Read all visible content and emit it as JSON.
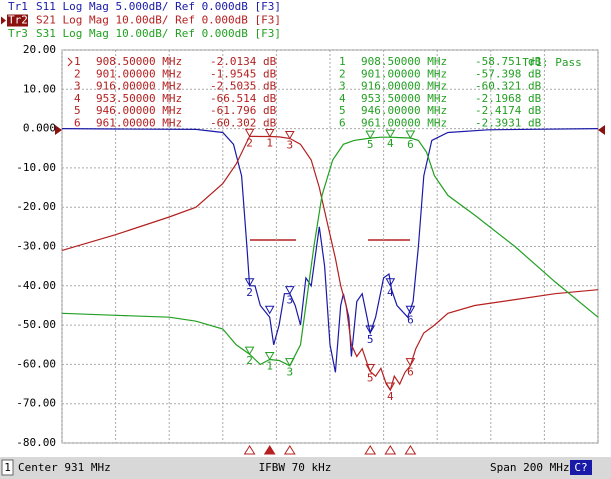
{
  "chart_data": {
    "type": "line",
    "xlim": [
      831,
      1031
    ],
    "xticks": [
      831,
      851,
      871,
      891,
      911,
      931,
      951,
      971,
      991,
      1011,
      1031
    ],
    "ylim": [
      -80,
      20
    ],
    "yticks": [
      {
        "value": 20,
        "label": "20.00"
      },
      {
        "value": 10,
        "label": "10.00"
      },
      {
        "value": 0,
        "label": "0.000"
      },
      {
        "value": -10,
        "label": "-10.00"
      },
      {
        "value": -20,
        "label": "-20.00"
      },
      {
        "value": -30,
        "label": "-30.00"
      },
      {
        "value": -40,
        "label": "-40.00"
      },
      {
        "value": -50,
        "label": "-50.00"
      },
      {
        "value": -60,
        "label": "-60.00"
      },
      {
        "value": -70,
        "label": "-70.00"
      },
      {
        "value": -80,
        "label": "-80.00"
      }
    ],
    "grid": true,
    "limit_test": "Tr1: Pass",
    "status": {
      "channel": "1",
      "center": "Center 931 MHz",
      "ifbw": "IFBW 70 kHz",
      "span": "Span 200 MHz",
      "cal": "C?"
    },
    "series": [
      {
        "name": "Tr1",
        "label": "S11  Log Mag  5.000dB/  Ref  0.000dB  [F3]",
        "color": "#1a1aa8",
        "x": [
          831,
          851,
          881,
          891,
          895,
          898,
          900,
          901,
          903,
          905,
          908.5,
          910,
          912,
          914,
          916,
          918,
          920,
          922,
          924,
          926,
          927,
          929,
          931,
          933,
          935,
          936,
          938,
          939,
          941,
          943,
          946,
          948,
          951,
          953,
          954,
          956,
          960,
          962,
          964,
          966,
          969,
          975,
          990,
          1031
        ],
        "values": [
          0,
          -0.1,
          -0.2,
          -1,
          -4,
          -12,
          -30,
          -40,
          -40,
          -45,
          -48,
          -55,
          -50,
          -42,
          -42,
          -45,
          -50,
          -38,
          -40,
          -30,
          -25,
          -35,
          -55,
          -62,
          -45,
          -42,
          -48,
          -58,
          -44,
          -42,
          -52,
          -48,
          -38,
          -37,
          -41,
          -45,
          -48,
          -44,
          -30,
          -12,
          -3,
          -1,
          -0.3,
          0
        ],
        "markers": [
          {
            "n": null,
            "x": 908.5,
            "y": -47
          },
          {
            "n": "2",
            "x": 901,
            "y": -40
          },
          {
            "n": "3",
            "x": 916,
            "y": -42
          },
          {
            "n": "4",
            "x": 953.5,
            "y": -40
          },
          {
            "n": "5",
            "x": 946,
            "y": -52
          },
          {
            "n": "6",
            "x": 961,
            "y": -47
          }
        ]
      },
      {
        "name": "Tr2",
        "label": "S21  Log Mag  10.00dB/  Ref  0.000dB  [F3]",
        "color": "#b52020",
        "x": [
          831,
          851,
          871,
          881,
          891,
          896,
          901,
          905,
          908.5,
          912,
          916,
          920,
          924,
          927,
          930,
          933,
          935,
          937,
          939,
          941,
          943,
          945,
          946,
          948,
          950,
          952,
          953.5,
          955,
          957,
          959,
          961,
          963,
          966,
          970,
          975,
          985,
          1000,
          1015,
          1031
        ],
        "values": [
          -31,
          -27,
          -22.5,
          -20,
          -14,
          -9,
          -1.9545,
          -2.0,
          -2.0134,
          -2.1,
          -2.5035,
          -4,
          -8,
          -15,
          -24,
          -33,
          -40,
          -45,
          -55,
          -58,
          -56,
          -60,
          -61.796,
          -63,
          -61,
          -65,
          -66.514,
          -63,
          -65,
          -62,
          -60.302,
          -56,
          -52,
          -50,
          -47,
          -45,
          -43.5,
          -42,
          -41
        ],
        "markers": [
          {
            "n": "1",
            "x": 908.5,
            "freq": "908.50000 MHz",
            "y": -2.0134,
            "label": "-2.0134 dB"
          },
          {
            "n": "2",
            "x": 901,
            "freq": "901.00000 MHz",
            "y": -1.9545,
            "label": "-1.9545 dB"
          },
          {
            "n": "3",
            "x": 916,
            "freq": "916.00000 MHz",
            "y": -2.5035,
            "label": "-2.5035 dB"
          },
          {
            "n": "4",
            "x": 953.5,
            "freq": "953.50000 MHz",
            "y": -66.514,
            "label": "-66.514 dB"
          },
          {
            "n": "5",
            "x": 946,
            "freq": "946.00000 MHz",
            "y": -61.796,
            "label": "-61.796 dB"
          },
          {
            "n": "6",
            "x": 961,
            "freq": "961.00000 MHz",
            "y": -60.302,
            "label": "-60.302 dB"
          }
        ]
      },
      {
        "name": "Tr3",
        "label": "S31  Log Mag  10.00dB/  Ref  0.000dB  [F3]",
        "color": "#22a022",
        "x": [
          831,
          851,
          871,
          881,
          891,
          896,
          901,
          905,
          908.5,
          912,
          916,
          920,
          922,
          925,
          928,
          932,
          936,
          940,
          946,
          950,
          953.5,
          957,
          961,
          964,
          967,
          970,
          975,
          985,
          1000,
          1015,
          1031
        ],
        "values": [
          -47,
          -47.5,
          -48,
          -49,
          -51,
          -55,
          -57.398,
          -60,
          -58.751,
          -59,
          -60.321,
          -55,
          -45,
          -30,
          -17,
          -8,
          -4,
          -3,
          -2.4174,
          -2.2,
          -2.1968,
          -2.3,
          -2.3931,
          -3,
          -6,
          -12,
          -17,
          -22,
          -30,
          -39,
          -48
        ],
        "markers": [
          {
            "n": "1",
            "x": 908.5,
            "freq": "908.50000 MHz",
            "y": -58.751,
            "label": "-58.751 dB"
          },
          {
            "n": "2",
            "x": 901,
            "freq": "901.00000 MHz",
            "y": -57.398,
            "label": "-57.398 dB"
          },
          {
            "n": "3",
            "x": 916,
            "freq": "916.00000 MHz",
            "y": -60.321,
            "label": "-60.321 dB"
          },
          {
            "n": "4",
            "x": 953.5,
            "freq": "953.50000 MHz",
            "y": -2.1968,
            "label": "-2.1968 dB"
          },
          {
            "n": "5",
            "x": 946,
            "freq": "946.00000 MHz",
            "y": -2.4174,
            "label": "-2.4174 dB"
          },
          {
            "n": "6",
            "x": 961,
            "freq": "961.00000 MHz",
            "y": -2.3931,
            "label": "-2.3931 dB"
          }
        ]
      }
    ]
  }
}
